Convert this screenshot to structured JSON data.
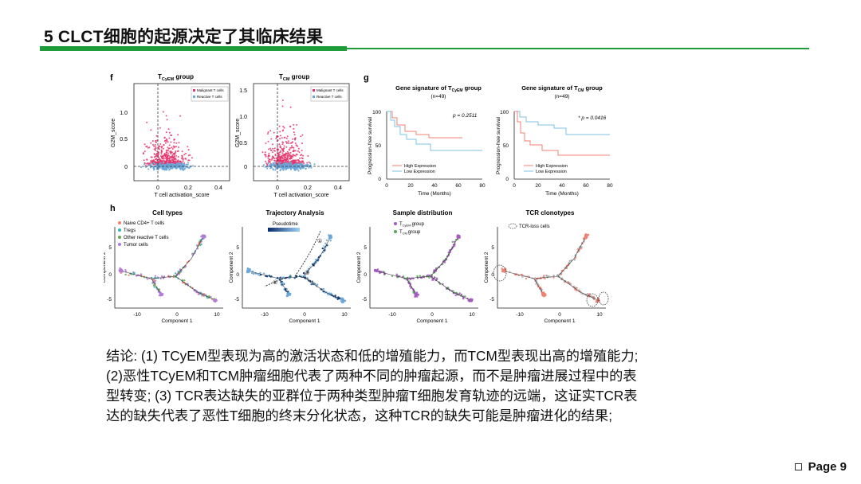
{
  "slide": {
    "title": "5 CLCT细胞的起源决定了其临床结果",
    "page_label": "Page 9",
    "conclusion": "结论: (1) TCyEM型表现为高的激活状态和低的增殖能力，而TCM型表现出高的增殖能力; (2)恶性TCyEM和TCM肿瘤细胞代表了两种不同的肿瘤起源，而不是肿瘤进展过程中的表型转变; (3) TCR表达缺失的亚群位于两种类型肿瘤T细胞发育轨迹的远端，这证实TCR表达的缺失代表了恶性T细胞的终末分化状态，这种TCR的缺失可能是肿瘤进化的结果;"
  },
  "figure": {
    "panel_f": "f",
    "panel_g": "g",
    "panel_h": "h",
    "scatter1_title": "T",
    "scatter1_sub": "CyEM",
    "scatter1_tail": " group",
    "scatter2_title": "T",
    "scatter2_sub": "CM",
    "scatter2_tail": " group",
    "scatter_ylabel": "G2M_score",
    "scatter_xlabel": "T cell activation_score",
    "legend_malignant": "Malignant T cells",
    "legend_reactive": "Reactive T cells",
    "scatter1_yticks": [
      "1.0",
      "0.5",
      "0"
    ],
    "scatter2_yticks": [
      "1.5",
      "1.0",
      "0.5",
      "0"
    ],
    "scatter_xticks": [
      "0",
      "0.2",
      "0.4"
    ],
    "km1_title": "Gene signature of T",
    "km1_sub": "CyEM",
    "km1_tail": " group",
    "km2_title": "Gene signature of T",
    "km2_sub": "CM",
    "km2_tail": " group",
    "km_n": "(n=49)",
    "km1_p": "p = 0.2511",
    "km2_p": "* p = 0.0416",
    "km_ylabel": "Progression-free survival",
    "km_xlabel": "Time (Months)",
    "km_yticks": [
      "100",
      "50",
      "0"
    ],
    "km_xticks": [
      "0",
      "20",
      "40",
      "60",
      "80"
    ],
    "km_high": "High Expression",
    "km_low": "Low Expression",
    "traj1_title": "Cell types",
    "traj2_title": "Trajectory Analysis",
    "traj3_title": "Sample distribution",
    "traj4_title": "TCR clonotypes",
    "traj1_legend": [
      "Naive CD4+ T cells",
      "Tregs",
      "Other reactive T cells",
      "Tumor cells"
    ],
    "traj2_legend": "Pseudotime",
    "traj3_legend": [
      "T",
      "T"
    ],
    "traj3_legend_sub": [
      "CyEM",
      "CM"
    ],
    "traj3_legend_tail": [
      "group",
      "group"
    ],
    "traj4_legend": "TCR-loss cells",
    "traj_ylabel": "Component 2",
    "traj_xlabel": "Component 1",
    "traj_yticks": [
      "5",
      "0",
      "-5"
    ],
    "traj_xticks": [
      "-10",
      "0",
      "10"
    ],
    "traj2_marks": [
      "①",
      "②",
      "③"
    ]
  },
  "colors": {
    "green": "#1e9c3a",
    "pink": "#e6336b",
    "blue": "#6aa6d8",
    "km_red": "#f08070",
    "km_blue": "#7cc3e6",
    "purple": "#a659c0"
  }
}
